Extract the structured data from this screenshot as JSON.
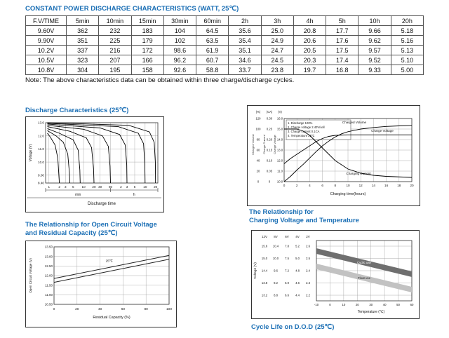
{
  "colors": {
    "accent": "#1b6fb5",
    "text": "#111111",
    "band_dark": "#6f6f6f",
    "band_light": "#c2c2c2"
  },
  "page": {
    "title": "CONSTANT POWER DISCHARGE CHARACTERISTICS (WATT, 25℃)",
    "note": "Note: The above characteristics data can be obtained within three charge/discharge cycles."
  },
  "table": {
    "headers": [
      "F.V/TIME",
      "5min",
      "10min",
      "15min",
      "30min",
      "60min",
      "2h",
      "3h",
      "4h",
      "5h",
      "10h",
      "20h"
    ],
    "rows": [
      [
        "9.60V",
        "362",
        "232",
        "183",
        "104",
        "64.5",
        "35.6",
        "25.0",
        "20.8",
        "17.7",
        "9.66",
        "5.18"
      ],
      [
        "9.90V",
        "351",
        "225",
        "179",
        "102",
        "63.5",
        "35.4",
        "24.9",
        "20.6",
        "17.6",
        "9.62",
        "5.16"
      ],
      [
        "10.2V",
        "337",
        "216",
        "172",
        "98.6",
        "61.9",
        "35.1",
        "24.7",
        "20.5",
        "17.5",
        "9.57",
        "5.13"
      ],
      [
        "10.5V",
        "323",
        "207",
        "166",
        "96.2",
        "60.7",
        "34.6",
        "24.5",
        "20.3",
        "17.4",
        "9.52",
        "5.10"
      ],
      [
        "10.8V",
        "304",
        "195",
        "158",
        "92.6",
        "58.8",
        "33.7",
        "23.8",
        "19.7",
        "16.8",
        "9.33",
        "5.00"
      ]
    ]
  },
  "sections": {
    "discharge_title": "Discharge Characteristics (25℃)",
    "ocv_title_line1": "The Relationship for Open Circuit Voltage",
    "ocv_title_line2": "and Residual Capacity (25℃)",
    "charging_title_line1": "The Relationship for",
    "charging_title_line2": "Charging Voltage and Temperature",
    "cycle_title": "Cycle Life on D.O.D (25℃)"
  },
  "chart_data": [
    {
      "id": "discharge",
      "type": "line",
      "title": "Discharge Characteristics (25℃)",
      "ylabel": "Voltage (V)",
      "xlabel": "Discharge time",
      "x_unit_left": "min",
      "x_unit_right": "h",
      "ylim": [
        8.4,
        13.0
      ],
      "yticks": [
        "13.0",
        "12.0",
        "11.0",
        "10.0",
        "9.00",
        "8.40"
      ],
      "ytick_vals": [
        13.0,
        12.0,
        11.0,
        10.0,
        9.0,
        8.4
      ],
      "xticks_min": [
        1,
        2,
        3,
        5,
        10,
        20,
        30,
        60
      ],
      "xticks_h": [
        2,
        3,
        5,
        10,
        20
      ],
      "xlim_min": [
        0.8,
        1400
      ],
      "series": [
        {
          "name": "curve-2min",
          "points": [
            [
              0.9,
              12.2
            ],
            [
              1.1,
              11.9
            ],
            [
              1.5,
              11.3
            ],
            [
              1.8,
              10.3
            ],
            [
              2,
              8.4
            ]
          ]
        },
        {
          "name": "curve-4min",
          "points": [
            [
              0.9,
              12.4
            ],
            [
              1.6,
              12.0
            ],
            [
              2.6,
              11.5
            ],
            [
              3.5,
              10.6
            ],
            [
              3.9,
              9.2
            ],
            [
              4,
              8.4
            ]
          ]
        },
        {
          "name": "curve-8min",
          "points": [
            [
              0.9,
              12.55
            ],
            [
              2,
              12.2
            ],
            [
              5,
              11.7
            ],
            [
              7,
              10.9
            ],
            [
              7.8,
              9.4
            ],
            [
              8,
              8.4
            ]
          ]
        },
        {
          "name": "curve-20min",
          "points": [
            [
              0.9,
              12.7
            ],
            [
              4,
              12.35
            ],
            [
              12,
              11.85
            ],
            [
              17,
              11.1
            ],
            [
              19.4,
              9.5
            ],
            [
              20,
              8.4
            ]
          ]
        },
        {
          "name": "curve-1h",
          "points": [
            [
              0.9,
              12.8
            ],
            [
              10,
              12.5
            ],
            [
              35,
              12.0
            ],
            [
              52,
              11.2
            ],
            [
              58,
              9.7
            ],
            [
              60,
              8.4
            ]
          ]
        },
        {
          "name": "curve-3h",
          "points": [
            [
              0.9,
              12.9
            ],
            [
              30,
              12.6
            ],
            [
              110,
              12.1
            ],
            [
              160,
              11.3
            ],
            [
              176,
              9.8
            ],
            [
              180,
              8.4
            ]
          ]
        },
        {
          "name": "curve-10h",
          "points": [
            [
              0.9,
              12.95
            ],
            [
              100,
              12.7
            ],
            [
              380,
              12.2
            ],
            [
              540,
              11.4
            ],
            [
              588,
              9.9
            ],
            [
              600,
              8.4
            ]
          ]
        },
        {
          "name": "curve-20h",
          "points": [
            [
              0.9,
              13.0
            ],
            [
              200,
              12.8
            ],
            [
              800,
              12.3
            ],
            [
              1100,
              11.5
            ],
            [
              1185,
              10.0
            ],
            [
              1200,
              8.4
            ]
          ]
        }
      ]
    },
    {
      "id": "charging",
      "type": "line",
      "xlabel": "Charging time(hours)",
      "xticks": [
        0,
        2,
        4,
        6,
        8,
        10,
        12,
        14,
        16,
        18,
        20
      ],
      "legend": [
        "1. Discharge 100%",
        "2. Charge voltage 2.40V/cell",
        "3. Charge current 0.1CA",
        "4. Temperature 25℃"
      ],
      "axes": [
        {
          "label": "Charged Volume",
          "unit": "(%)",
          "ticks": [
            "120",
            "100",
            "80",
            "60",
            "40",
            "20",
            "0"
          ],
          "range": [
            0,
            120
          ]
        },
        {
          "label": "Charge Current",
          "unit": "(CA)",
          "ticks": [
            "0.30",
            "0.25",
            "0.20",
            "0.15",
            "0.10",
            "0.05",
            "0"
          ],
          "range": [
            0,
            0.3
          ]
        },
        {
          "label": "Charge Voltage",
          "unit": "(V)",
          "ticks": [
            "16.0",
            "15.0",
            "14.0",
            "13.0",
            "12.0",
            "11.0",
            "10.0"
          ],
          "range": [
            10,
            16
          ]
        }
      ],
      "annotations": [
        "Charged Volume",
        "Charge Voltage",
        "Charging Current"
      ],
      "series": [
        {
          "name": "charged-volume",
          "axis": 0,
          "points": [
            [
              0,
              0
            ],
            [
              1,
              10
            ],
            [
              2,
              22
            ],
            [
              3,
              33
            ],
            [
              4,
              45
            ],
            [
              5,
              57
            ],
            [
              6,
              68
            ],
            [
              7,
              77
            ],
            [
              8,
              85
            ],
            [
              9,
              91
            ],
            [
              10,
              95
            ],
            [
              12,
              100
            ],
            [
              14,
              103
            ],
            [
              16,
              105
            ],
            [
              18,
              106
            ],
            [
              20,
              107
            ]
          ]
        },
        {
          "name": "charge-voltage",
          "axis": 2,
          "points": [
            [
              0,
              11.7
            ],
            [
              1,
              12.2
            ],
            [
              2,
              12.6
            ],
            [
              3,
              13.0
            ],
            [
              4,
              13.4
            ],
            [
              5,
              13.8
            ],
            [
              6,
              14.1
            ],
            [
              7,
              14.3
            ],
            [
              8,
              14.4
            ],
            [
              10,
              14.45
            ],
            [
              12,
              14.45
            ],
            [
              16,
              14.45
            ],
            [
              20,
              14.45
            ]
          ]
        },
        {
          "name": "charging-current",
          "axis": 1,
          "points": [
            [
              0,
              0.25
            ],
            [
              2,
              0.25
            ],
            [
              3,
              0.24
            ],
            [
              4,
              0.22
            ],
            [
              5,
              0.19
            ],
            [
              6,
              0.16
            ],
            [
              7,
              0.13
            ],
            [
              8,
              0.1
            ],
            [
              9,
              0.08
            ],
            [
              10,
              0.06
            ],
            [
              12,
              0.04
            ],
            [
              14,
              0.03
            ],
            [
              16,
              0.025
            ],
            [
              20,
              0.02
            ]
          ]
        }
      ]
    },
    {
      "id": "ocv",
      "type": "line",
      "ylabel": "Open Circuit Voltage (V)",
      "xlabel": "Residual Capacity (%)",
      "ylim": [
        10.5,
        13.5
      ],
      "yticks": [
        "13.50",
        "13.00",
        "12.50",
        "12.00",
        "11.50",
        "11.00",
        "10.50"
      ],
      "ytick_vals": [
        13.5,
        13.0,
        12.5,
        12.0,
        11.5,
        11.0,
        10.5
      ],
      "xticks": [
        0,
        20,
        40,
        60,
        80,
        100
      ],
      "annotation": "25℃",
      "series": [
        {
          "name": "ocv-upper",
          "points": [
            [
              0,
              11.85
            ],
            [
              100,
              13.05
            ]
          ]
        },
        {
          "name": "ocv-lower",
          "points": [
            [
              0,
              11.65
            ],
            [
              100,
              12.85
            ]
          ]
        }
      ]
    },
    {
      "id": "charge-temp",
      "type": "line",
      "ylabel": "Voltage (V)",
      "xlabel": "Temperature (℃)",
      "columns": [
        "12V",
        "8V",
        "6V",
        "4V",
        "2V"
      ],
      "rows": [
        [
          "15.6",
          "10.4",
          "7.8",
          "5.2",
          "2.6"
        ],
        [
          "15.0",
          "10.0",
          "7.5",
          "5.0",
          "2.5"
        ],
        [
          "14.4",
          "9.6",
          "7.2",
          "4.8",
          "2.4"
        ],
        [
          "13.8",
          "9.2",
          "6.9",
          "4.6",
          "2.3"
        ],
        [
          "13.2",
          "8.8",
          "6.6",
          "4.4",
          "2.2"
        ]
      ],
      "xticks": [
        -10,
        0,
        10,
        20,
        30,
        40,
        50,
        60
      ],
      "bands": [
        {
          "label": "Cyclic use"
        },
        {
          "label": "Float use"
        }
      ]
    }
  ]
}
